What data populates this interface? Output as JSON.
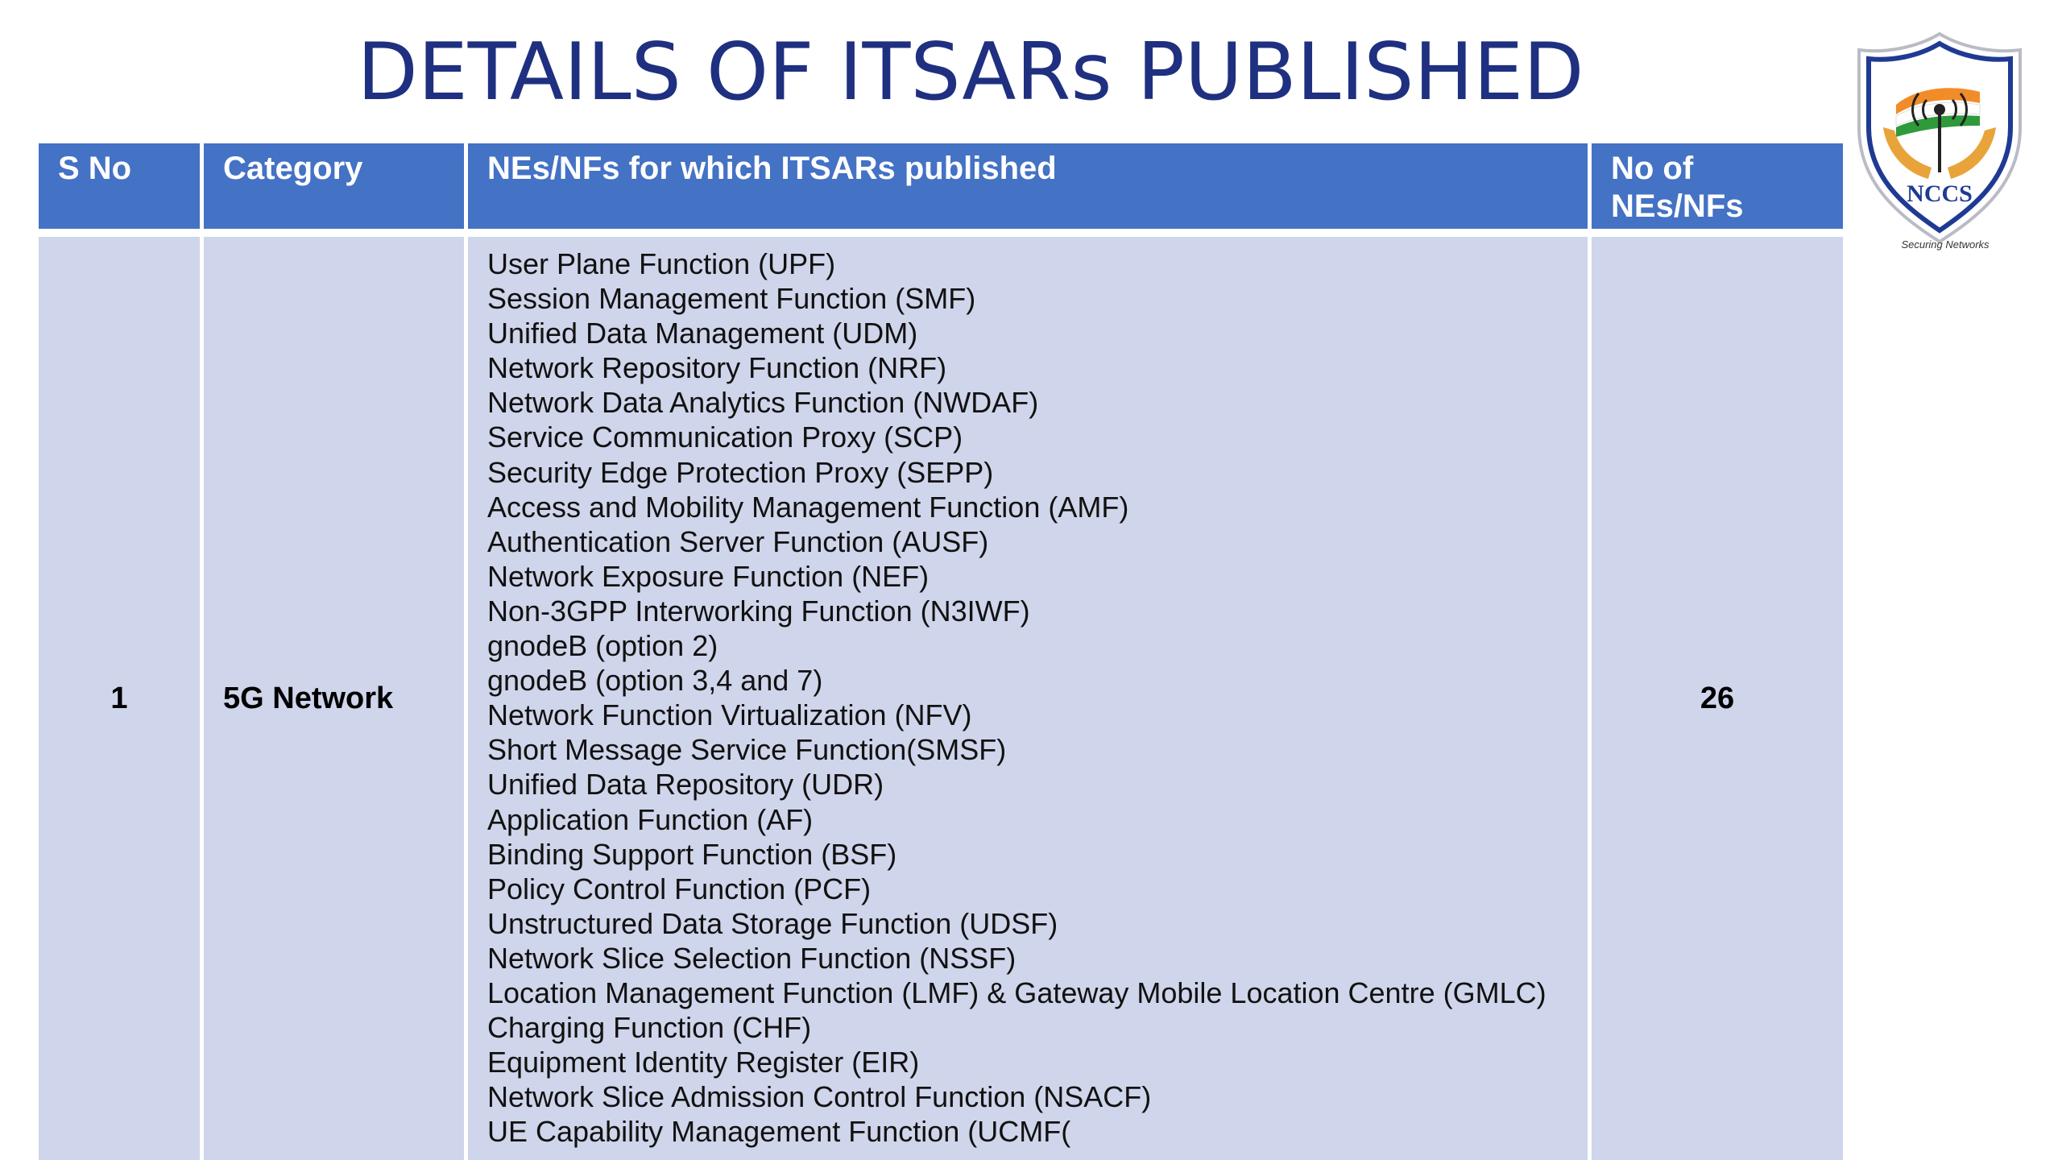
{
  "title": "DETAILS OF ITSARs PUBLISHED",
  "logo": {
    "icon": "nccs-shield-logo",
    "text": "NCCS",
    "tagline": "Securing Networks"
  },
  "colors": {
    "title": "#1f3080",
    "header_bg": "#4472c4",
    "row_bg": "#cfd5ea"
  },
  "table": {
    "headers": {
      "sno": "S No",
      "category": "Category",
      "nes_nfs": "NEs/NFs for which ITSARs published",
      "count": "No of NEs/NFs"
    },
    "rows": [
      {
        "sno": "1",
        "category": "5G Network",
        "count": "26",
        "items": [
          "User Plane Function (UPF)",
          "Session Management Function (SMF)",
          "Unified Data Management (UDM)",
          "Network Repository Function (NRF)",
          "Network Data Analytics Function (NWDAF)",
          "Service Communication Proxy (SCP)",
          "Security Edge Protection Proxy (SEPP)",
          "Access and Mobility Management Function (AMF)",
          "Authentication Server Function (AUSF)",
          "Network Exposure Function (NEF)",
          "Non-3GPP Interworking Function (N3IWF)",
          "gnodeB (option 2)",
          "gnodeB (option 3,4 and 7)",
          "Network Function Virtualization (NFV)",
          "Short Message Service Function(SMSF)",
          "Unified Data Repository (UDR)",
          "Application Function (AF)",
          "Binding Support Function (BSF)",
          "Policy Control Function (PCF)",
          "Unstructured Data Storage Function (UDSF)",
          "Network Slice Selection Function (NSSF)",
          "Location Management Function (LMF) & Gateway Mobile Location Centre (GMLC)",
          "Charging Function (CHF)",
          "Equipment Identity Register (EIR)",
          "Network Slice Admission Control Function (NSACF)",
          "UE Capability Management Function (UCMF("
        ]
      }
    ]
  }
}
